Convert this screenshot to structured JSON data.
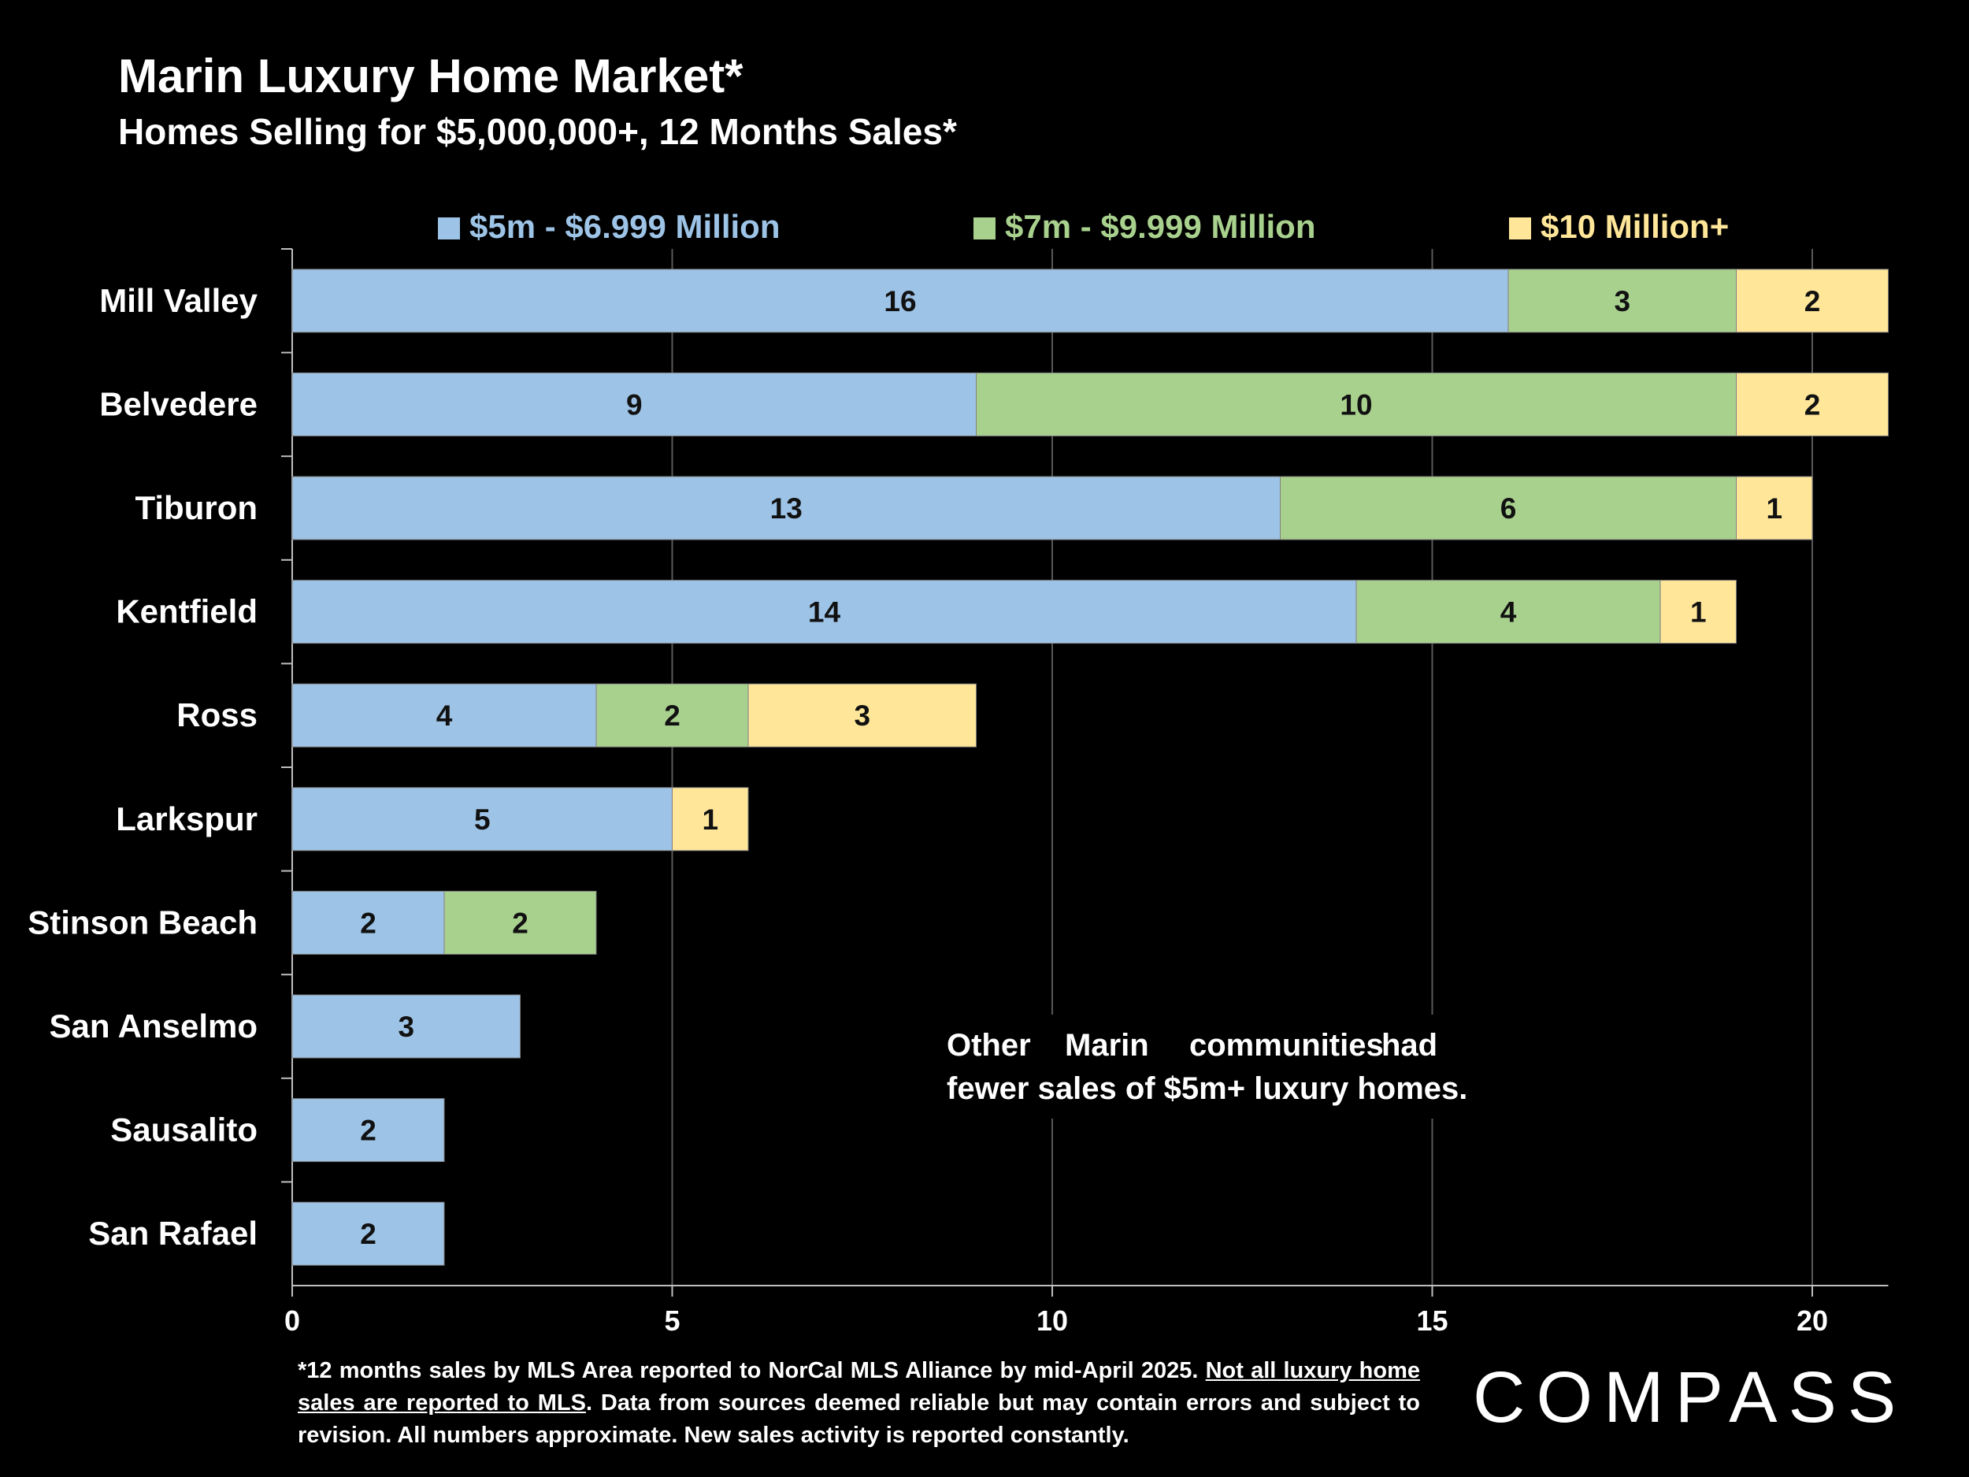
{
  "header": {
    "title": "Marin Luxury Home Market*",
    "subtitle": "Homes Selling for $5,000,000+, 12 Months Sales*"
  },
  "colors": {
    "series1": "#9dc3e6",
    "series2": "#a9d18e",
    "series3": "#ffe699",
    "background": "#000000",
    "grid": "#595959"
  },
  "chart_data": {
    "type": "bar",
    "orientation": "horizontal",
    "stacked": true,
    "title": "Marin Luxury Home Market*",
    "subtitle": "Homes Selling for $5,000,000+, 12 Months Sales*",
    "categories": [
      "Mill Valley",
      "Belvedere",
      "Tiburon",
      "Kentfield",
      "Ross",
      "Larkspur",
      "Stinson Beach",
      "San Anselmo",
      "Sausalito",
      "San Rafael"
    ],
    "series": [
      {
        "name": "$5m - $6.999 Million",
        "values": [
          16,
          9,
          13,
          14,
          4,
          5,
          2,
          3,
          2,
          2
        ]
      },
      {
        "name": "$7m - $9.999 Million",
        "values": [
          3,
          10,
          6,
          4,
          2,
          0,
          2,
          0,
          0,
          0
        ]
      },
      {
        "name": "$10 Million+",
        "values": [
          2,
          2,
          1,
          1,
          3,
          1,
          0,
          0,
          0,
          0
        ]
      }
    ],
    "xlim": [
      0,
      21
    ],
    "xticks": [
      "0",
      "5",
      "10",
      "15",
      "20"
    ],
    "grid": true,
    "legend": "top",
    "annotation": "Other Marin communities had fewer sales of $5m+ luxury homes."
  },
  "footnote": {
    "part1": "*12 months sales by MLS Area reported to NorCal MLS Alliance by mid-April 2025. ",
    "part2": "Not all luxury home sales are reported to MLS",
    "part3": ". Data from sources deemed reliable but may contain errors and subject to revision. All numbers approximate. New sales activity is reported constantly."
  },
  "brand": {
    "logo": "COMPASS"
  }
}
